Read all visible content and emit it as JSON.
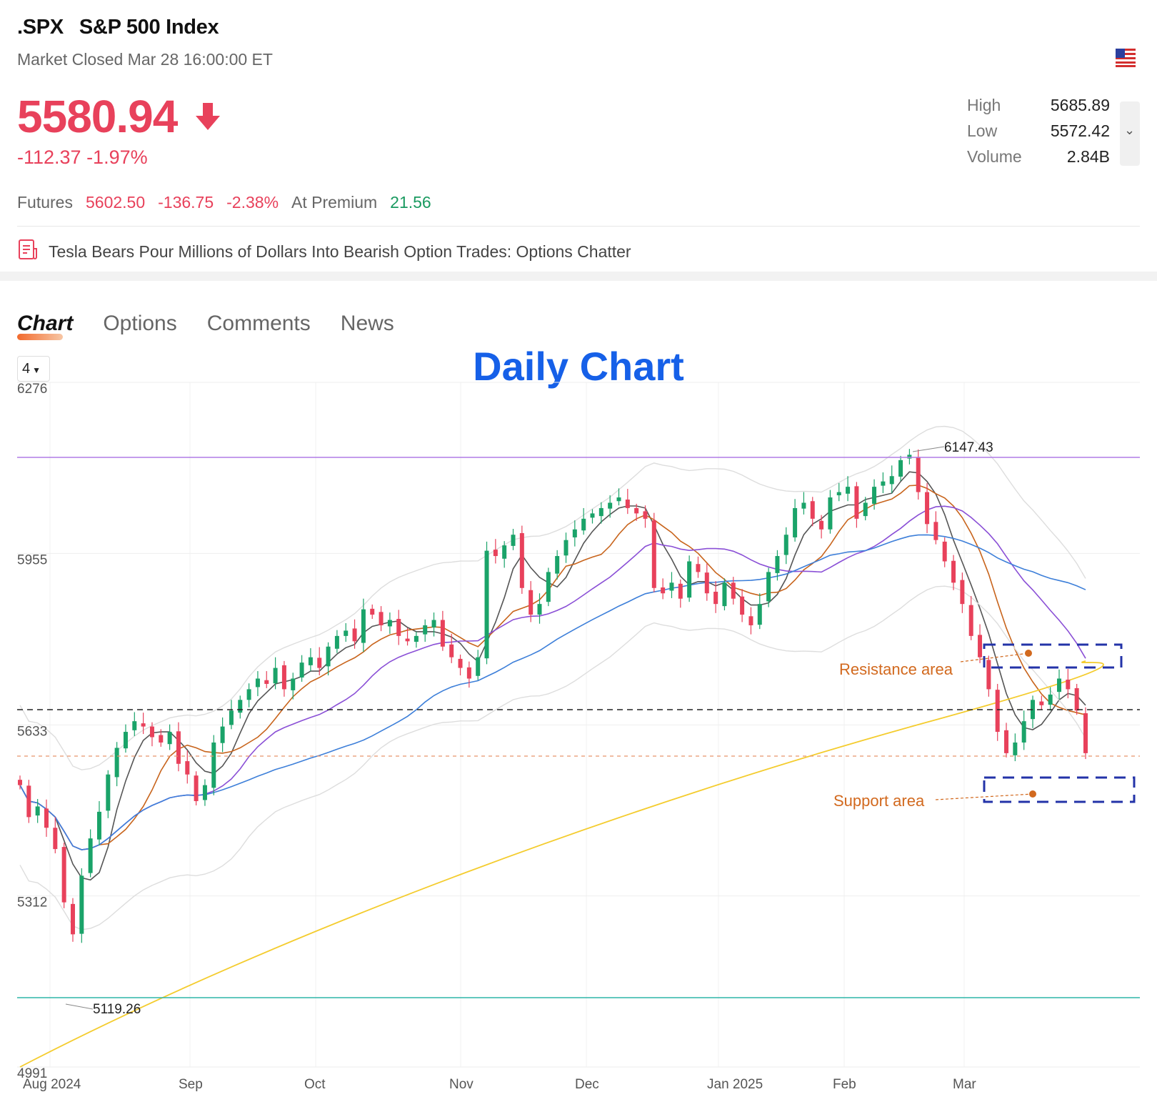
{
  "header": {
    "symbol": ".SPX",
    "name": "S&P 500 Index",
    "status": "Market Closed Mar 28 16:00:00 ET",
    "price": "5580.94",
    "change": "-112.37 -1.97%",
    "flag_icon": "us-flag-icon",
    "arrow_icon": "down-arrow-icon"
  },
  "stats": {
    "high_label": "High",
    "high": "5685.89",
    "low_label": "Low",
    "low": "5572.42",
    "volume_label": "Volume",
    "volume": "2.84B"
  },
  "futures": {
    "label": "Futures",
    "price": "5602.50",
    "change": "-136.75",
    "pct": "-2.38%",
    "premium_label": "At Premium",
    "premium": "21.56"
  },
  "news": {
    "headline": "Tesla Bears Pour Millions of Dollars Into Bearish Option Trades: Options Chatter"
  },
  "tabs": [
    "Chart",
    "Options",
    "Comments",
    "News"
  ],
  "selector": {
    "value": "4"
  },
  "chart_title": "Daily Chart",
  "colors": {
    "up": "#1aa369",
    "down": "#e8415b",
    "accent": "#1660e8"
  },
  "chart_data": {
    "type": "candlestick",
    "y_ticks": [
      "6276",
      "5955",
      "5633",
      "5312",
      "4991"
    ],
    "x_ticks": [
      "Aug 2024",
      "Sep",
      "Oct",
      "Nov",
      "Dec",
      "Jan 2025",
      "Feb",
      "Mar"
    ],
    "ylim": [
      4991,
      6276
    ],
    "period_high": "6147.43",
    "period_low": "5119.26",
    "annotations": {
      "resistance": "Resistance area",
      "support": "Support area"
    },
    "close_series": [
      5520,
      5460,
      5480,
      5440,
      5400,
      5300,
      5240,
      5350,
      5420,
      5470,
      5540,
      5590,
      5620,
      5640,
      5630,
      5610,
      5600,
      5620,
      5560,
      5540,
      5490,
      5520,
      5600,
      5630,
      5660,
      5680,
      5700,
      5720,
      5710,
      5740,
      5700,
      5720,
      5750,
      5760,
      5740,
      5780,
      5800,
      5810,
      5790,
      5850,
      5840,
      5820,
      5830,
      5800,
      5790,
      5800,
      5820,
      5830,
      5780,
      5760,
      5740,
      5720,
      5760,
      5960,
      5950,
      5970,
      5990,
      5890,
      5840,
      5860,
      5920,
      5950,
      5980,
      6000,
      6020,
      6030,
      6040,
      6050,
      6060,
      6040,
      6030,
      6020,
      5890,
      5880,
      5900,
      5870,
      5940,
      5920,
      5880,
      5860,
      5900,
      5870,
      5840,
      5820,
      5860,
      5920,
      5950,
      5990,
      6040,
      6050,
      6020,
      6000,
      6060,
      6070,
      6080,
      6020,
      6050,
      6080,
      6090,
      6100,
      6130,
      6140,
      6070,
      6010,
      5980,
      5940,
      5900,
      5860,
      5800,
      5760,
      5700,
      5620,
      5580,
      5600,
      5640,
      5680,
      5670,
      5690,
      5720,
      5700,
      5660,
      5580
    ]
  }
}
